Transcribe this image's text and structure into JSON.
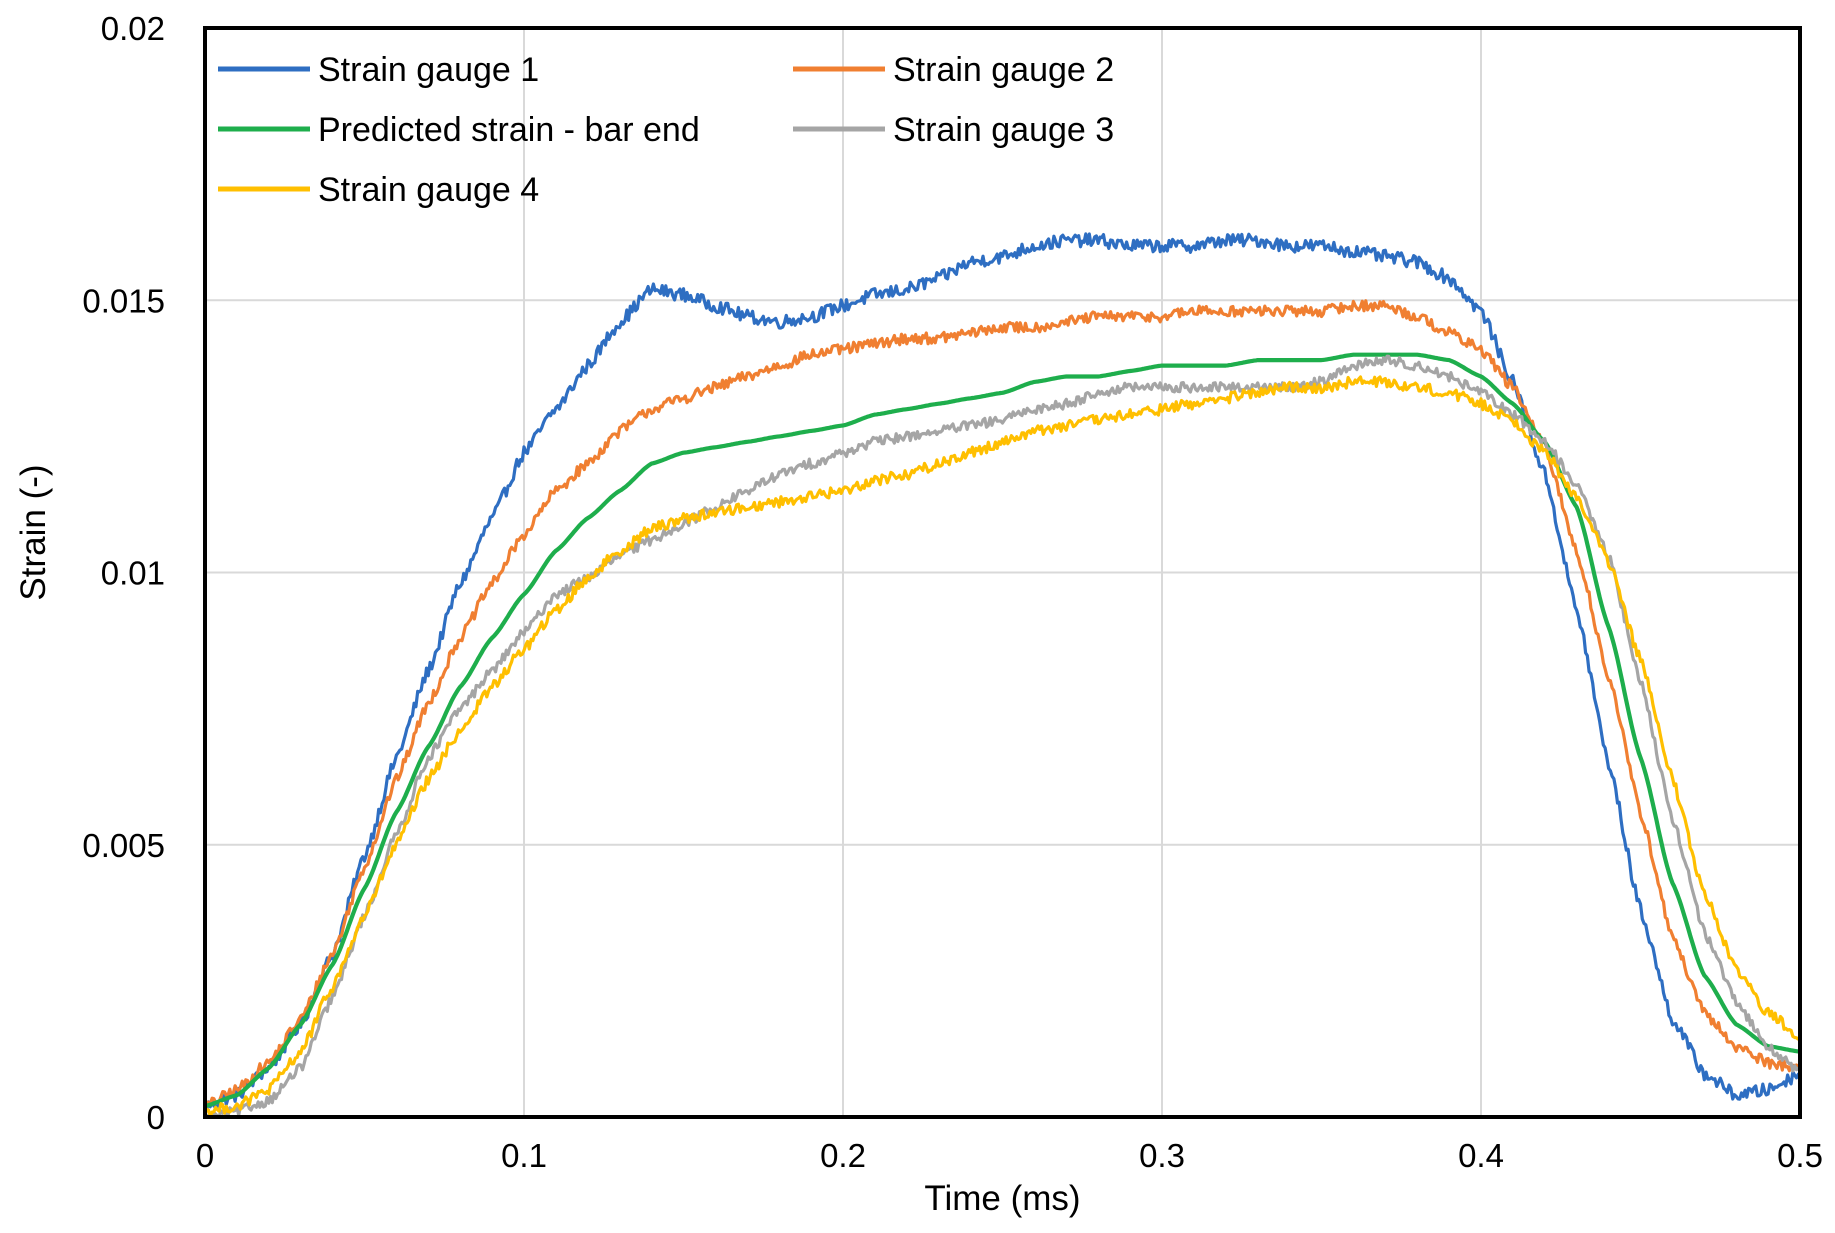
{
  "chart_data": {
    "type": "line",
    "title": "",
    "xlabel": "Time (ms)",
    "ylabel": "Strain (-)",
    "xlim": [
      0,
      0.5
    ],
    "ylim": [
      0,
      0.02
    ],
    "grid": true,
    "legend_position": "top-left",
    "x_ticks": [
      {
        "value": 0,
        "label": "0"
      },
      {
        "value": 0.1,
        "label": "0.1"
      },
      {
        "value": 0.2,
        "label": "0.2"
      },
      {
        "value": 0.3,
        "label": "0.3"
      },
      {
        "value": 0.4,
        "label": "0.4"
      },
      {
        "value": 0.5,
        "label": "0.5"
      }
    ],
    "y_ticks": [
      {
        "value": 0,
        "label": "0"
      },
      {
        "value": 0.005,
        "label": "0.005"
      },
      {
        "value": 0.01,
        "label": "0.01"
      },
      {
        "value": 0.015,
        "label": "0.015"
      },
      {
        "value": 0.02,
        "label": "0.02"
      }
    ],
    "series": [
      {
        "name": "Strain gauge 1",
        "color": "#2E6EC2",
        "noise": 0.00012,
        "x": [
          0,
          0.01,
          0.02,
          0.03,
          0.04,
          0.05,
          0.06,
          0.07,
          0.08,
          0.09,
          0.1,
          0.11,
          0.12,
          0.13,
          0.14,
          0.15,
          0.16,
          0.17,
          0.18,
          0.19,
          0.2,
          0.21,
          0.22,
          0.23,
          0.24,
          0.25,
          0.26,
          0.27,
          0.28,
          0.29,
          0.3,
          0.31,
          0.32,
          0.33,
          0.34,
          0.35,
          0.36,
          0.37,
          0.38,
          0.39,
          0.4,
          0.41,
          0.42,
          0.43,
          0.44,
          0.45,
          0.46,
          0.47,
          0.48,
          0.49,
          0.5
        ],
        "values": [
          0.0002,
          0.0004,
          0.0009,
          0.0017,
          0.003,
          0.0048,
          0.0066,
          0.0082,
          0.0098,
          0.011,
          0.0122,
          0.013,
          0.0138,
          0.0146,
          0.0152,
          0.0151,
          0.0149,
          0.0147,
          0.0146,
          0.0147,
          0.0149,
          0.0151,
          0.0152,
          0.0154,
          0.0157,
          0.0158,
          0.016,
          0.0161,
          0.0161,
          0.016,
          0.016,
          0.016,
          0.0161,
          0.0161,
          0.016,
          0.016,
          0.0159,
          0.0158,
          0.0157,
          0.0154,
          0.0148,
          0.0135,
          0.0118,
          0.0093,
          0.0065,
          0.0038,
          0.0018,
          0.0008,
          0.0004,
          0.0005,
          0.0008
        ]
      },
      {
        "name": "Strain gauge 2",
        "color": "#F07F31",
        "noise": 0.0001,
        "x": [
          0,
          0.01,
          0.02,
          0.03,
          0.04,
          0.05,
          0.06,
          0.07,
          0.08,
          0.09,
          0.1,
          0.11,
          0.12,
          0.13,
          0.14,
          0.15,
          0.16,
          0.17,
          0.18,
          0.19,
          0.2,
          0.21,
          0.22,
          0.23,
          0.24,
          0.25,
          0.26,
          0.27,
          0.28,
          0.29,
          0.3,
          0.31,
          0.32,
          0.33,
          0.34,
          0.35,
          0.36,
          0.37,
          0.38,
          0.39,
          0.4,
          0.41,
          0.42,
          0.43,
          0.44,
          0.45,
          0.46,
          0.47,
          0.48,
          0.49,
          0.5
        ],
        "values": [
          0.0002,
          0.0005,
          0.001,
          0.0018,
          0.003,
          0.0046,
          0.0062,
          0.0076,
          0.0088,
          0.0098,
          0.0107,
          0.0115,
          0.012,
          0.0126,
          0.013,
          0.0132,
          0.0134,
          0.0136,
          0.0138,
          0.014,
          0.0141,
          0.0142,
          0.0143,
          0.0143,
          0.0144,
          0.0145,
          0.0145,
          0.0146,
          0.0147,
          0.0147,
          0.0147,
          0.0148,
          0.0148,
          0.0148,
          0.0148,
          0.0148,
          0.0149,
          0.0149,
          0.0147,
          0.0144,
          0.0141,
          0.0134,
          0.0123,
          0.0104,
          0.0081,
          0.0056,
          0.0033,
          0.0019,
          0.0013,
          0.001,
          0.0009
        ]
      },
      {
        "name": "Predicted strain - bar end",
        "color": "#1EAE4C",
        "noise": 0,
        "x": [
          0,
          0.01,
          0.02,
          0.03,
          0.04,
          0.05,
          0.06,
          0.07,
          0.08,
          0.09,
          0.1,
          0.11,
          0.12,
          0.13,
          0.14,
          0.15,
          0.16,
          0.17,
          0.18,
          0.19,
          0.2,
          0.21,
          0.22,
          0.23,
          0.24,
          0.25,
          0.26,
          0.27,
          0.28,
          0.29,
          0.3,
          0.31,
          0.32,
          0.33,
          0.34,
          0.35,
          0.36,
          0.37,
          0.38,
          0.39,
          0.4,
          0.41,
          0.42,
          0.43,
          0.44,
          0.45,
          0.46,
          0.47,
          0.48,
          0.49,
          0.5
        ],
        "values": [
          0.0002,
          0.0004,
          0.0009,
          0.0017,
          0.0028,
          0.0042,
          0.0056,
          0.0068,
          0.0079,
          0.0088,
          0.0096,
          0.0104,
          0.011,
          0.0115,
          0.012,
          0.0122,
          0.0123,
          0.0124,
          0.0125,
          0.0126,
          0.0127,
          0.0129,
          0.013,
          0.0131,
          0.0132,
          0.0133,
          0.0135,
          0.0136,
          0.0136,
          0.0137,
          0.0138,
          0.0138,
          0.0138,
          0.0139,
          0.0139,
          0.0139,
          0.014,
          0.014,
          0.014,
          0.0139,
          0.0136,
          0.0131,
          0.0124,
          0.0112,
          0.009,
          0.0066,
          0.0043,
          0.0026,
          0.0017,
          0.0013,
          0.0012
        ]
      },
      {
        "name": "Strain gauge 3",
        "color": "#A5A5A5",
        "noise": 9e-05,
        "x": [
          0,
          0.01,
          0.02,
          0.03,
          0.04,
          0.05,
          0.06,
          0.07,
          0.08,
          0.09,
          0.1,
          0.11,
          0.12,
          0.13,
          0.14,
          0.15,
          0.16,
          0.17,
          0.18,
          0.19,
          0.2,
          0.21,
          0.22,
          0.23,
          0.24,
          0.25,
          0.26,
          0.27,
          0.28,
          0.29,
          0.3,
          0.31,
          0.32,
          0.33,
          0.34,
          0.35,
          0.36,
          0.37,
          0.38,
          0.39,
          0.4,
          0.41,
          0.42,
          0.43,
          0.44,
          0.45,
          0.46,
          0.47,
          0.48,
          0.49,
          0.5
        ],
        "values": [
          0,
          0.0001,
          0.0003,
          0.0009,
          0.0022,
          0.0037,
          0.0052,
          0.0066,
          0.0075,
          0.0082,
          0.0089,
          0.0096,
          0.0099,
          0.0103,
          0.0106,
          0.0109,
          0.0112,
          0.0115,
          0.0118,
          0.012,
          0.0122,
          0.0124,
          0.0125,
          0.0126,
          0.0127,
          0.0128,
          0.013,
          0.0131,
          0.0133,
          0.0134,
          0.0134,
          0.0134,
          0.0134,
          0.0134,
          0.0134,
          0.0135,
          0.0138,
          0.0139,
          0.0138,
          0.0136,
          0.0133,
          0.0129,
          0.0124,
          0.0116,
          0.0103,
          0.008,
          0.0055,
          0.0034,
          0.0021,
          0.0013,
          0.0008
        ]
      },
      {
        "name": "Strain gauge 4",
        "color": "#FFBF00",
        "noise": 0.0001,
        "x": [
          0,
          0.01,
          0.02,
          0.03,
          0.04,
          0.05,
          0.06,
          0.07,
          0.08,
          0.09,
          0.1,
          0.11,
          0.12,
          0.13,
          0.14,
          0.15,
          0.16,
          0.17,
          0.18,
          0.19,
          0.2,
          0.21,
          0.22,
          0.23,
          0.24,
          0.25,
          0.26,
          0.27,
          0.28,
          0.29,
          0.3,
          0.31,
          0.32,
          0.33,
          0.34,
          0.35,
          0.36,
          0.37,
          0.38,
          0.39,
          0.4,
          0.41,
          0.42,
          0.43,
          0.44,
          0.45,
          0.46,
          0.47,
          0.48,
          0.49,
          0.5
        ],
        "values": [
          0.0001,
          0.0002,
          0.0005,
          0.0012,
          0.0024,
          0.0037,
          0.005,
          0.0062,
          0.0071,
          0.0079,
          0.0086,
          0.0093,
          0.0099,
          0.0104,
          0.0108,
          0.011,
          0.0111,
          0.0112,
          0.0113,
          0.0114,
          0.0115,
          0.0117,
          0.0118,
          0.012,
          0.0122,
          0.0124,
          0.0126,
          0.0127,
          0.0128,
          0.0129,
          0.013,
          0.0131,
          0.0132,
          0.0133,
          0.0134,
          0.0134,
          0.0135,
          0.0135,
          0.0134,
          0.0133,
          0.0131,
          0.0128,
          0.0122,
          0.0114,
          0.0102,
          0.0084,
          0.0062,
          0.0041,
          0.0027,
          0.0019,
          0.0015
        ]
      }
    ],
    "annotations": []
  }
}
